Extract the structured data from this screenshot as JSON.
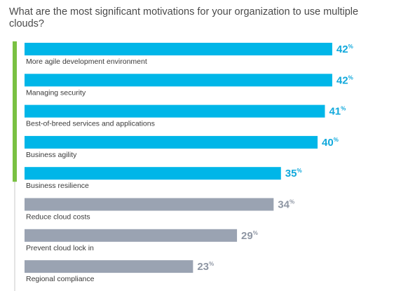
{
  "chart_data": {
    "type": "bar",
    "orientation": "horizontal",
    "title": "What are the most significant motivations for your organization to use multiple clouds?",
    "categories": [
      "More agile development environment",
      "Managing security",
      "Best-of-breed services and applications",
      "Business agility",
      "Business resilience",
      "Reduce cloud costs",
      "Prevent cloud lock in",
      "Regional compliance"
    ],
    "values": [
      42,
      42,
      41,
      40,
      35,
      34,
      29,
      23
    ],
    "value_suffix": "%",
    "highlighted_count": 5,
    "colors": {
      "highlight": "#00b6e8",
      "normal": "#9aa3b2",
      "highlight_text": "#12a9dc",
      "normal_text": "#8e96a3",
      "accent_line": "#7ac142",
      "axis_line": "#c8c8c8"
    }
  }
}
